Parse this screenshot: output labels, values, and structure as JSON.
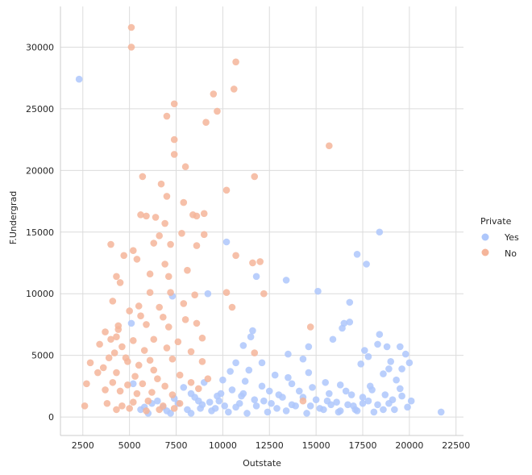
{
  "chart_data": {
    "type": "scatter",
    "title": "",
    "xlabel": "Outstate",
    "ylabel": "F.Undergrad",
    "xlim": [
      1300,
      22900
    ],
    "ylim": [
      -1500,
      33300
    ],
    "xticks": [
      2500,
      5000,
      7500,
      10000,
      12500,
      15000,
      17500,
      20000,
      22500
    ],
    "xtick_labels": [
      "2500",
      "5000",
      "7500",
      "10000",
      "12500",
      "15000",
      "17500",
      "20000",
      "22500"
    ],
    "yticks": [
      0,
      5000,
      10000,
      15000,
      20000,
      25000,
      30000
    ],
    "ytick_labels": [
      "0",
      "5000",
      "10000",
      "15000",
      "20000",
      "25000",
      "30000"
    ],
    "grid": true,
    "legend": {
      "title": "Private",
      "placement": "right",
      "entries": [
        {
          "label": "Yes",
          "color": "#aec7fb"
        },
        {
          "label": "No",
          "color": "#f5b59a"
        }
      ]
    },
    "series": [
      {
        "name": "Yes",
        "color": "#aec7fb",
        "points": [
          [
            2300,
            27400
          ],
          [
            11800,
            11400
          ],
          [
            9200,
            10000
          ],
          [
            10200,
            14200
          ],
          [
            13400,
            11100
          ],
          [
            15100,
            10200
          ],
          [
            17200,
            13200
          ],
          [
            17700,
            12400
          ],
          [
            18400,
            15000
          ],
          [
            16800,
            9300
          ],
          [
            7300,
            9800
          ],
          [
            12100,
            4400
          ],
          [
            10400,
            3700
          ],
          [
            10700,
            4400
          ],
          [
            11100,
            5800
          ],
          [
            11500,
            6500
          ],
          [
            11600,
            7000
          ],
          [
            13500,
            5100
          ],
          [
            14300,
            4700
          ],
          [
            14600,
            5700
          ],
          [
            15900,
            6300
          ],
          [
            16500,
            7600
          ],
          [
            16400,
            7200
          ],
          [
            16800,
            7700
          ],
          [
            17400,
            4300
          ],
          [
            17600,
            5400
          ],
          [
            17800,
            4900
          ],
          [
            18300,
            5900
          ],
          [
            18400,
            6700
          ],
          [
            18800,
            5700
          ],
          [
            19000,
            4500
          ],
          [
            19500,
            5700
          ],
          [
            19800,
            5100
          ],
          [
            20000,
            4400
          ],
          [
            19600,
            3900
          ],
          [
            18600,
            3500
          ],
          [
            18900,
            3900
          ],
          [
            20100,
            1300
          ],
          [
            21700,
            400
          ],
          [
            17200,
            500
          ],
          [
            16200,
            400
          ],
          [
            5100,
            7600
          ],
          [
            5200,
            2700
          ],
          [
            5600,
            600
          ],
          [
            6200,
            1100
          ],
          [
            6800,
            800
          ],
          [
            7400,
            1500
          ],
          [
            7900,
            2400
          ],
          [
            8300,
            1900
          ],
          [
            8800,
            700
          ],
          [
            9300,
            1200
          ],
          [
            9700,
            1700
          ],
          [
            10100,
            900
          ],
          [
            10500,
            2200
          ],
          [
            10900,
            1100
          ],
          [
            11200,
            2900
          ],
          [
            11700,
            1400
          ],
          [
            12100,
            2500
          ],
          [
            12600,
            1100
          ],
          [
            13000,
            1800
          ],
          [
            13500,
            3200
          ],
          [
            13900,
            900
          ],
          [
            14300,
            1600
          ],
          [
            14800,
            2400
          ],
          [
            15200,
            700
          ],
          [
            15700,
            1900
          ],
          [
            16100,
            1200
          ],
          [
            16600,
            2100
          ],
          [
            17000,
            900
          ],
          [
            17500,
            1600
          ],
          [
            17900,
            2500
          ],
          [
            18300,
            1000
          ],
          [
            18700,
            1800
          ],
          [
            19100,
            1400
          ],
          [
            19500,
            2300
          ],
          [
            19900,
            800
          ],
          [
            6000,
            300
          ],
          [
            7200,
            300
          ],
          [
            8300,
            300
          ],
          [
            9400,
            500
          ],
          [
            10300,
            400
          ],
          [
            11300,
            300
          ],
          [
            12400,
            400
          ],
          [
            13400,
            500
          ],
          [
            14500,
            300
          ],
          [
            15400,
            600
          ],
          [
            16300,
            500
          ],
          [
            17100,
            600
          ],
          [
            18100,
            400
          ],
          [
            19200,
            600
          ],
          [
            7600,
            1100
          ],
          [
            8700,
            1300
          ],
          [
            9900,
            1900
          ],
          [
            11000,
            1700
          ],
          [
            12200,
            1300
          ],
          [
            13200,
            1600
          ],
          [
            14100,
            2100
          ],
          [
            15000,
            1400
          ],
          [
            15800,
            1000
          ],
          [
            16900,
            1800
          ],
          [
            17800,
            1300
          ],
          [
            18600,
            600
          ],
          [
            9000,
            2800
          ],
          [
            10000,
            3000
          ],
          [
            11400,
            3800
          ],
          [
            12800,
            3400
          ],
          [
            13700,
            2700
          ],
          [
            14600,
            3600
          ],
          [
            15500,
            2800
          ],
          [
            16300,
            2600
          ],
          [
            18000,
            2200
          ],
          [
            19300,
            3000
          ],
          [
            8100,
            600
          ],
          [
            8900,
            1000
          ],
          [
            9600,
            700
          ],
          [
            10700,
            800
          ],
          [
            11800,
            900
          ],
          [
            12900,
            700
          ],
          [
            13700,
            1000
          ],
          [
            14700,
            900
          ],
          [
            15600,
            1300
          ],
          [
            16700,
            1000
          ],
          [
            17500,
            1100
          ],
          [
            18900,
            1100
          ],
          [
            19600,
            1700
          ],
          [
            7000,
            500
          ],
          [
            6500,
            1300
          ],
          [
            5800,
            800
          ],
          [
            12500,
            2100
          ],
          [
            11100,
            1900
          ],
          [
            9800,
            1300
          ],
          [
            8500,
            1600
          ]
        ]
      },
      {
        "name": "No",
        "color": "#f5b59a",
        "points": [
          [
            5100,
            31600
          ],
          [
            5100,
            30000
          ],
          [
            10700,
            28800
          ],
          [
            10600,
            26600
          ],
          [
            9500,
            26200
          ],
          [
            7400,
            25400
          ],
          [
            9700,
            24800
          ],
          [
            7000,
            24400
          ],
          [
            9100,
            23900
          ],
          [
            7400,
            22500
          ],
          [
            15700,
            22000
          ],
          [
            7400,
            21300
          ],
          [
            8000,
            20300
          ],
          [
            5700,
            19500
          ],
          [
            11700,
            19500
          ],
          [
            6700,
            18900
          ],
          [
            10200,
            18400
          ],
          [
            7000,
            17900
          ],
          [
            7900,
            17400
          ],
          [
            5600,
            16400
          ],
          [
            5900,
            16300
          ],
          [
            6400,
            16200
          ],
          [
            8400,
            16400
          ],
          [
            8600,
            16300
          ],
          [
            9000,
            16500
          ],
          [
            6900,
            15700
          ],
          [
            7800,
            14900
          ],
          [
            9000,
            14800
          ],
          [
            6600,
            14700
          ],
          [
            5200,
            13500
          ],
          [
            4000,
            14000
          ],
          [
            6300,
            14100
          ],
          [
            7200,
            14000
          ],
          [
            8600,
            13900
          ],
          [
            10700,
            13100
          ],
          [
            5400,
            12800
          ],
          [
            6900,
            12400
          ],
          [
            11600,
            12500
          ],
          [
            12000,
            12600
          ],
          [
            4700,
            13100
          ],
          [
            6100,
            11600
          ],
          [
            7100,
            11400
          ],
          [
            8100,
            11900
          ],
          [
            4300,
            11400
          ],
          [
            4500,
            10900
          ],
          [
            6100,
            10100
          ],
          [
            7200,
            10100
          ],
          [
            8500,
            9900
          ],
          [
            10200,
            10100
          ],
          [
            12200,
            10000
          ],
          [
            4100,
            9400
          ],
          [
            5500,
            9000
          ],
          [
            6600,
            8900
          ],
          [
            7900,
            9200
          ],
          [
            10500,
            8900
          ],
          [
            5600,
            8200
          ],
          [
            6800,
            8100
          ],
          [
            8000,
            7900
          ],
          [
            4400,
            7400
          ],
          [
            5900,
            7500
          ],
          [
            7100,
            7300
          ],
          [
            8600,
            7600
          ],
          [
            3700,
            6900
          ],
          [
            4300,
            6500
          ],
          [
            5200,
            6200
          ],
          [
            6300,
            6300
          ],
          [
            7600,
            6100
          ],
          [
            8900,
            6400
          ],
          [
            3400,
            5900
          ],
          [
            4600,
            5700
          ],
          [
            5800,
            5400
          ],
          [
            7000,
            5600
          ],
          [
            8300,
            5300
          ],
          [
            11700,
            5200
          ],
          [
            14700,
            7300
          ],
          [
            3900,
            4800
          ],
          [
            4900,
            4500
          ],
          [
            6100,
            4600
          ],
          [
            7300,
            4700
          ],
          [
            8900,
            4500
          ],
          [
            2900,
            4400
          ],
          [
            3600,
            4000
          ],
          [
            4300,
            3600
          ],
          [
            5300,
            3300
          ],
          [
            6500,
            3100
          ],
          [
            7700,
            3400
          ],
          [
            3300,
            3600
          ],
          [
            4100,
            2800
          ],
          [
            4900,
            2600
          ],
          [
            5700,
            2700
          ],
          [
            6900,
            2500
          ],
          [
            8300,
            2800
          ],
          [
            2700,
            2700
          ],
          [
            3700,
            2200
          ],
          [
            4500,
            2100
          ],
          [
            5400,
            1900
          ],
          [
            6200,
            2000
          ],
          [
            7300,
            1800
          ],
          [
            3800,
            1100
          ],
          [
            4600,
            900
          ],
          [
            5200,
            1200
          ],
          [
            6000,
            1300
          ],
          [
            6800,
            900
          ],
          [
            7700,
            1100
          ],
          [
            2600,
            900
          ],
          [
            4300,
            600
          ],
          [
            5000,
            700
          ],
          [
            5900,
            500
          ],
          [
            6600,
            600
          ],
          [
            7400,
            700
          ],
          [
            14300,
            1300
          ],
          [
            8700,
            2300
          ],
          [
            9200,
            3100
          ],
          [
            6300,
            3800
          ],
          [
            5500,
            4200
          ],
          [
            4800,
            4800
          ],
          [
            4200,
            5200
          ],
          [
            4000,
            6300
          ],
          [
            4400,
            7100
          ],
          [
            5000,
            8600
          ]
        ]
      }
    ]
  }
}
